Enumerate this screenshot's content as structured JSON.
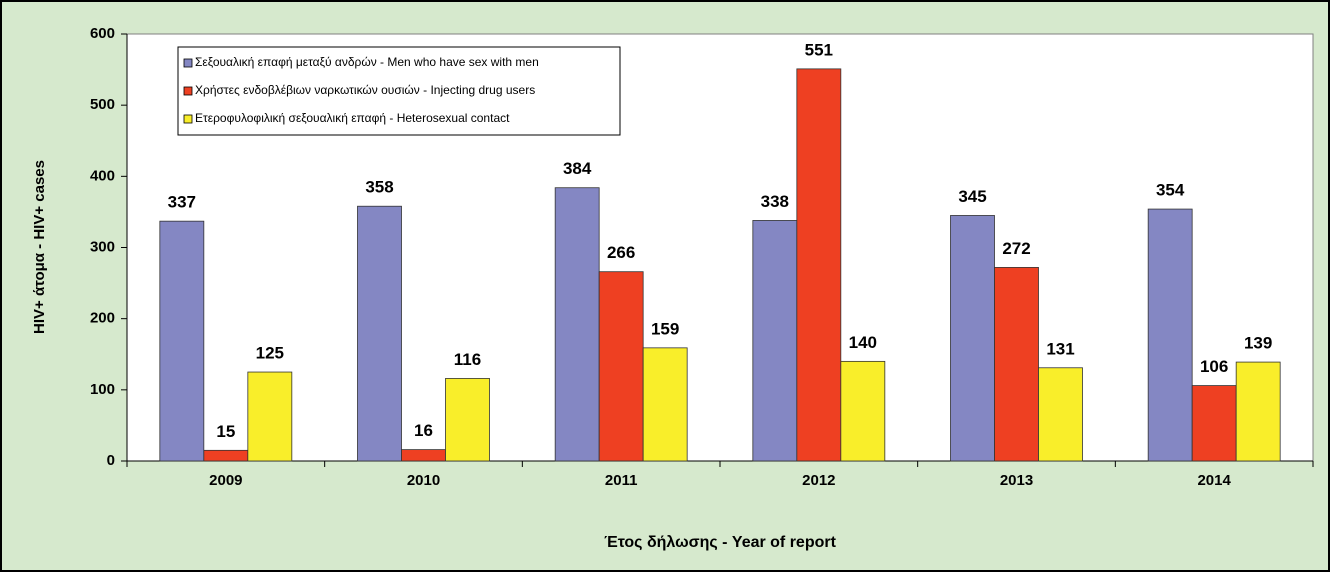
{
  "chart_data": {
    "type": "bar",
    "categories": [
      "2009",
      "2010",
      "2011",
      "2012",
      "2013",
      "2014"
    ],
    "series": [
      {
        "name": "Σεξουαλική επαφή μεταξύ ανδρών - Men who have sex with men",
        "color": "#8487c3",
        "values": [
          337,
          358,
          384,
          338,
          345,
          354
        ]
      },
      {
        "name": "Χρήστες ενδοβλέβιων ναρκωτικών ουσιών - Injecting drug users",
        "color": "#ee4022",
        "values": [
          15,
          16,
          266,
          551,
          272,
          106
        ]
      },
      {
        "name": "Ετεροφυλοφιλική σεξουαλική επαφή - Heterosexual contact",
        "color": "#f9ee2a",
        "values": [
          125,
          116,
          159,
          140,
          131,
          139
        ]
      }
    ],
    "xlabel": "Έτος δήλωσης - Year of report",
    "ylabel": "HIV+ άτομα  -  HIV+ cases",
    "ylim": [
      0,
      600
    ],
    "yticks": [
      0,
      100,
      200,
      300,
      400,
      500,
      600
    ],
    "legend": "upper left"
  }
}
